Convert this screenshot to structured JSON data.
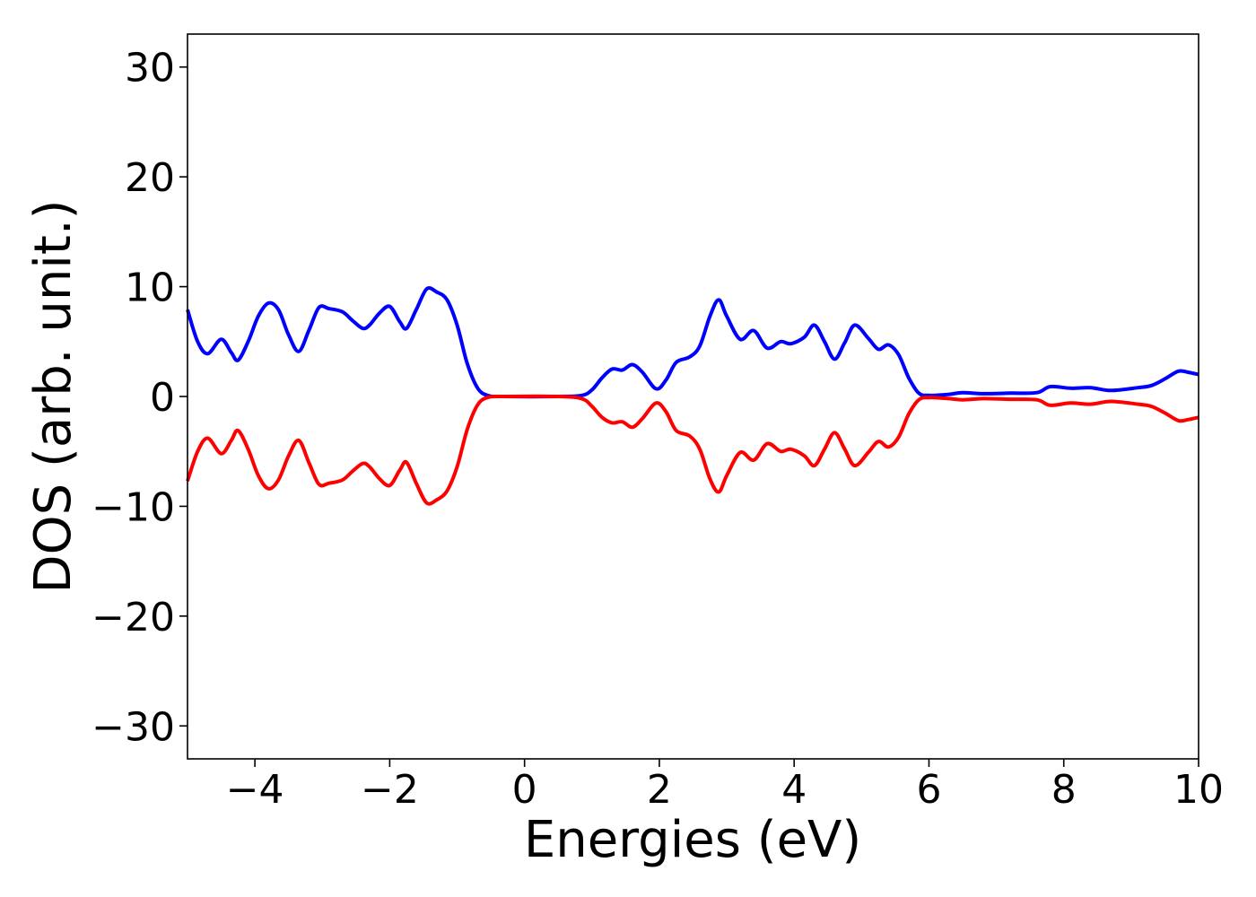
{
  "chart_data": {
    "type": "line",
    "xlabel": "Energies (eV)",
    "ylabel": "DOS (arb. unit.)",
    "xlim": [
      -5,
      10
    ],
    "ylim": [
      -33,
      33
    ],
    "grid": false,
    "x_ticks": [
      {
        "value": -4,
        "label": "−4"
      },
      {
        "value": -2,
        "label": "−2"
      },
      {
        "value": 0,
        "label": "0"
      },
      {
        "value": 2,
        "label": "2"
      },
      {
        "value": 4,
        "label": "4"
      },
      {
        "value": 6,
        "label": "6"
      },
      {
        "value": 8,
        "label": "8"
      },
      {
        "value": 10,
        "label": "10"
      }
    ],
    "y_ticks": [
      {
        "value": 30,
        "label": "30"
      },
      {
        "value": 20,
        "label": "20"
      },
      {
        "value": 10,
        "label": "10"
      },
      {
        "value": 0,
        "label": "0"
      },
      {
        "value": -10,
        "label": "−10"
      },
      {
        "value": -20,
        "label": "−20"
      },
      {
        "value": -30,
        "label": "−30"
      }
    ],
    "series": [
      {
        "color": "#0000ff",
        "points": [
          [
            -5.0,
            7.9
          ],
          [
            -4.85,
            5.0
          ],
          [
            -4.7,
            3.9
          ],
          [
            -4.5,
            5.2
          ],
          [
            -4.35,
            4.0
          ],
          [
            -4.25,
            3.3
          ],
          [
            -4.1,
            5.0
          ],
          [
            -3.95,
            7.3
          ],
          [
            -3.8,
            8.5
          ],
          [
            -3.65,
            7.9
          ],
          [
            -3.5,
            5.6
          ],
          [
            -3.35,
            4.1
          ],
          [
            -3.2,
            6.0
          ],
          [
            -3.05,
            8.1
          ],
          [
            -2.9,
            8.0
          ],
          [
            -2.7,
            7.7
          ],
          [
            -2.55,
            6.9
          ],
          [
            -2.4,
            6.2
          ],
          [
            -2.3,
            6.5
          ],
          [
            -2.15,
            7.6
          ],
          [
            -2.0,
            8.2
          ],
          [
            -1.85,
            6.8
          ],
          [
            -1.75,
            6.2
          ],
          [
            -1.6,
            8.0
          ],
          [
            -1.45,
            9.8
          ],
          [
            -1.3,
            9.5
          ],
          [
            -1.15,
            8.8
          ],
          [
            -1.0,
            6.5
          ],
          [
            -0.85,
            3.0
          ],
          [
            -0.7,
            0.8
          ],
          [
            -0.55,
            0.1
          ],
          [
            -0.3,
            0.0
          ],
          [
            0.5,
            0.0
          ],
          [
            0.85,
            0.1
          ],
          [
            1.0,
            0.6
          ],
          [
            1.15,
            1.7
          ],
          [
            1.3,
            2.5
          ],
          [
            1.45,
            2.4
          ],
          [
            1.6,
            2.9
          ],
          [
            1.75,
            2.2
          ],
          [
            1.95,
            0.7
          ],
          [
            2.1,
            1.5
          ],
          [
            2.25,
            3.1
          ],
          [
            2.45,
            3.6
          ],
          [
            2.6,
            4.6
          ],
          [
            2.75,
            7.3
          ],
          [
            2.88,
            8.8
          ],
          [
            3.0,
            7.3
          ],
          [
            3.2,
            5.2
          ],
          [
            3.4,
            6.0
          ],
          [
            3.6,
            4.4
          ],
          [
            3.8,
            5.0
          ],
          [
            3.95,
            4.8
          ],
          [
            4.15,
            5.4
          ],
          [
            4.3,
            6.5
          ],
          [
            4.45,
            5.0
          ],
          [
            4.6,
            3.4
          ],
          [
            4.75,
            4.9
          ],
          [
            4.9,
            6.5
          ],
          [
            5.1,
            5.3
          ],
          [
            5.25,
            4.3
          ],
          [
            5.4,
            4.7
          ],
          [
            5.55,
            3.8
          ],
          [
            5.7,
            1.7
          ],
          [
            5.85,
            0.3
          ],
          [
            6.0,
            0.1
          ],
          [
            6.3,
            0.2
          ],
          [
            6.5,
            0.35
          ],
          [
            6.8,
            0.25
          ],
          [
            7.2,
            0.3
          ],
          [
            7.6,
            0.35
          ],
          [
            7.8,
            0.9
          ],
          [
            8.1,
            0.75
          ],
          [
            8.4,
            0.8
          ],
          [
            8.7,
            0.55
          ],
          [
            9.1,
            0.8
          ],
          [
            9.3,
            1.0
          ],
          [
            9.5,
            1.6
          ],
          [
            9.7,
            2.3
          ],
          [
            9.85,
            2.2
          ],
          [
            10.0,
            2.0
          ]
        ]
      },
      {
        "color": "#ff0000",
        "points": [
          [
            -5.0,
            -7.7
          ],
          [
            -4.85,
            -5.0
          ],
          [
            -4.7,
            -3.8
          ],
          [
            -4.5,
            -5.2
          ],
          [
            -4.35,
            -4.0
          ],
          [
            -4.25,
            -3.1
          ],
          [
            -4.1,
            -4.8
          ],
          [
            -3.95,
            -7.2
          ],
          [
            -3.8,
            -8.4
          ],
          [
            -3.65,
            -7.6
          ],
          [
            -3.5,
            -5.4
          ],
          [
            -3.35,
            -4.0
          ],
          [
            -3.2,
            -6.0
          ],
          [
            -3.05,
            -8.0
          ],
          [
            -2.9,
            -7.9
          ],
          [
            -2.7,
            -7.6
          ],
          [
            -2.55,
            -6.8
          ],
          [
            -2.4,
            -6.1
          ],
          [
            -2.3,
            -6.4
          ],
          [
            -2.15,
            -7.5
          ],
          [
            -2.0,
            -8.1
          ],
          [
            -1.85,
            -6.7
          ],
          [
            -1.75,
            -6.0
          ],
          [
            -1.6,
            -8.0
          ],
          [
            -1.45,
            -9.7
          ],
          [
            -1.3,
            -9.4
          ],
          [
            -1.15,
            -8.6
          ],
          [
            -1.0,
            -6.4
          ],
          [
            -0.85,
            -3.0
          ],
          [
            -0.7,
            -0.8
          ],
          [
            -0.55,
            -0.1
          ],
          [
            -0.3,
            0.0
          ],
          [
            0.5,
            0.0
          ],
          [
            0.85,
            -0.2
          ],
          [
            1.0,
            -0.9
          ],
          [
            1.15,
            -1.9
          ],
          [
            1.3,
            -2.4
          ],
          [
            1.45,
            -2.3
          ],
          [
            1.6,
            -2.8
          ],
          [
            1.75,
            -2.0
          ],
          [
            1.95,
            -0.6
          ],
          [
            2.1,
            -1.4
          ],
          [
            2.25,
            -3.1
          ],
          [
            2.45,
            -3.6
          ],
          [
            2.6,
            -4.8
          ],
          [
            2.75,
            -7.5
          ],
          [
            2.88,
            -8.7
          ],
          [
            3.0,
            -7.2
          ],
          [
            3.2,
            -5.1
          ],
          [
            3.4,
            -5.8
          ],
          [
            3.6,
            -4.3
          ],
          [
            3.8,
            -5.0
          ],
          [
            3.95,
            -4.8
          ],
          [
            4.15,
            -5.4
          ],
          [
            4.3,
            -6.3
          ],
          [
            4.45,
            -4.8
          ],
          [
            4.6,
            -3.3
          ],
          [
            4.75,
            -4.8
          ],
          [
            4.9,
            -6.3
          ],
          [
            5.1,
            -5.1
          ],
          [
            5.25,
            -4.1
          ],
          [
            5.4,
            -4.6
          ],
          [
            5.55,
            -3.7
          ],
          [
            5.7,
            -1.6
          ],
          [
            5.85,
            -0.3
          ],
          [
            6.0,
            -0.1
          ],
          [
            6.3,
            -0.2
          ],
          [
            6.5,
            -0.3
          ],
          [
            6.8,
            -0.2
          ],
          [
            7.2,
            -0.25
          ],
          [
            7.6,
            -0.3
          ],
          [
            7.8,
            -0.8
          ],
          [
            8.1,
            -0.6
          ],
          [
            8.4,
            -0.7
          ],
          [
            8.7,
            -0.45
          ],
          [
            9.1,
            -0.7
          ],
          [
            9.3,
            -0.9
          ],
          [
            9.5,
            -1.5
          ],
          [
            9.7,
            -2.2
          ],
          [
            9.85,
            -2.1
          ],
          [
            10.0,
            -1.9
          ]
        ]
      }
    ]
  }
}
